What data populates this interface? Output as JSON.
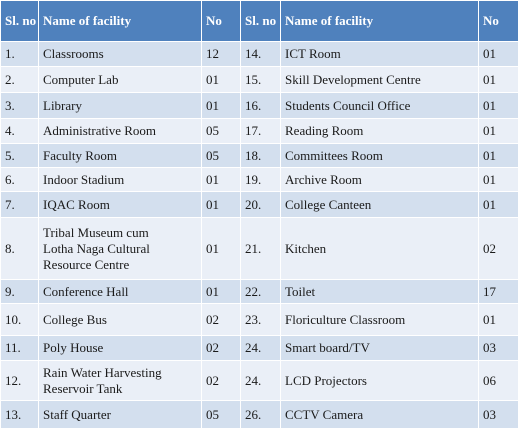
{
  "headers": [
    "Sl. no",
    "Name of facility",
    "No",
    "Sl. no",
    "Name of facility",
    "No"
  ],
  "rows": [
    [
      "1.",
      "Classrooms",
      "12",
      "14.",
      "ICT Room",
      "01"
    ],
    [
      "2.",
      "Computer Lab",
      "01",
      "15.",
      "Skill Development Centre",
      "01"
    ],
    [
      "3.",
      "Library",
      "01",
      "16.",
      "Students Council Office",
      "01"
    ],
    [
      "4.",
      "Administrative Room",
      "05",
      "17.",
      "Reading Room",
      "01"
    ],
    [
      "5.",
      "Faculty Room",
      "05",
      "18.",
      "Committees Room",
      "01"
    ],
    [
      "6.",
      "Indoor Stadium",
      "01",
      "19.",
      "Archive Room",
      "01"
    ],
    [
      "7.",
      "IQAC Room",
      "01",
      "20.",
      "College Canteen",
      "01"
    ],
    [
      "8.",
      "Tribal Museum cum Lotha Naga Cultural Resource Centre",
      "01",
      "21.",
      "Kitchen",
      "02"
    ],
    [
      "9.",
      "Conference Hall",
      "01",
      "22.",
      "Toilet",
      "17"
    ],
    [
      "10.",
      "College Bus",
      "02",
      "23.",
      "Floriculture Classroom",
      "01"
    ],
    [
      "11.",
      "Poly House",
      "02",
      "24.",
      "Smart board/TV",
      "03"
    ],
    [
      "12.",
      "Rain Water Harvesting Reservoir Tank",
      "02",
      "24.",
      "LCD Projectors",
      "06"
    ],
    [
      "13.",
      "Staff Quarter",
      "05",
      "26.",
      "CCTV Camera",
      "03"
    ]
  ]
}
